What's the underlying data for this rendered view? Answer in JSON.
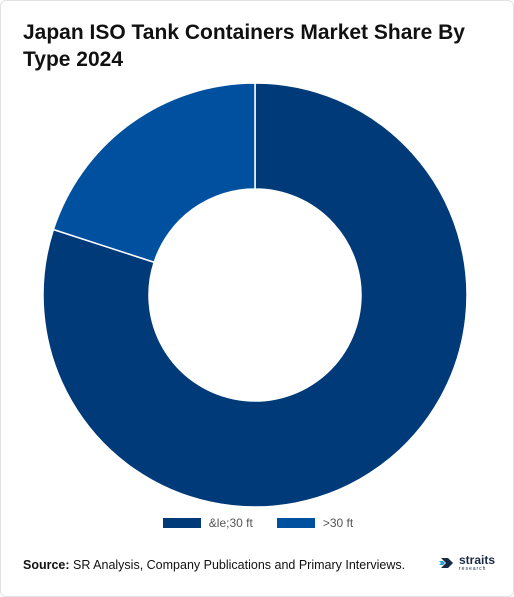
{
  "title": "Japan ISO Tank Containers Market Share By Type 2024",
  "chart_data": {
    "type": "pie",
    "donut": true,
    "title": "Japan ISO Tank Containers Market Share By Type 2024",
    "start_angle_deg": 0,
    "direction": "clockwise",
    "slices": [
      {
        "label": "&le;30 ft",
        "value": 80,
        "color": "#003a78"
      },
      {
        "label": ">30 ft",
        "value": 20,
        "color": "#0050a0"
      }
    ],
    "legend_position": "bottom"
  },
  "source": {
    "label": "Source:",
    "text": " SR Analysis, Company Publications and Primary Interviews."
  },
  "logo": {
    "name": "straits",
    "sub": "research",
    "icon": "straits-logo-icon"
  }
}
